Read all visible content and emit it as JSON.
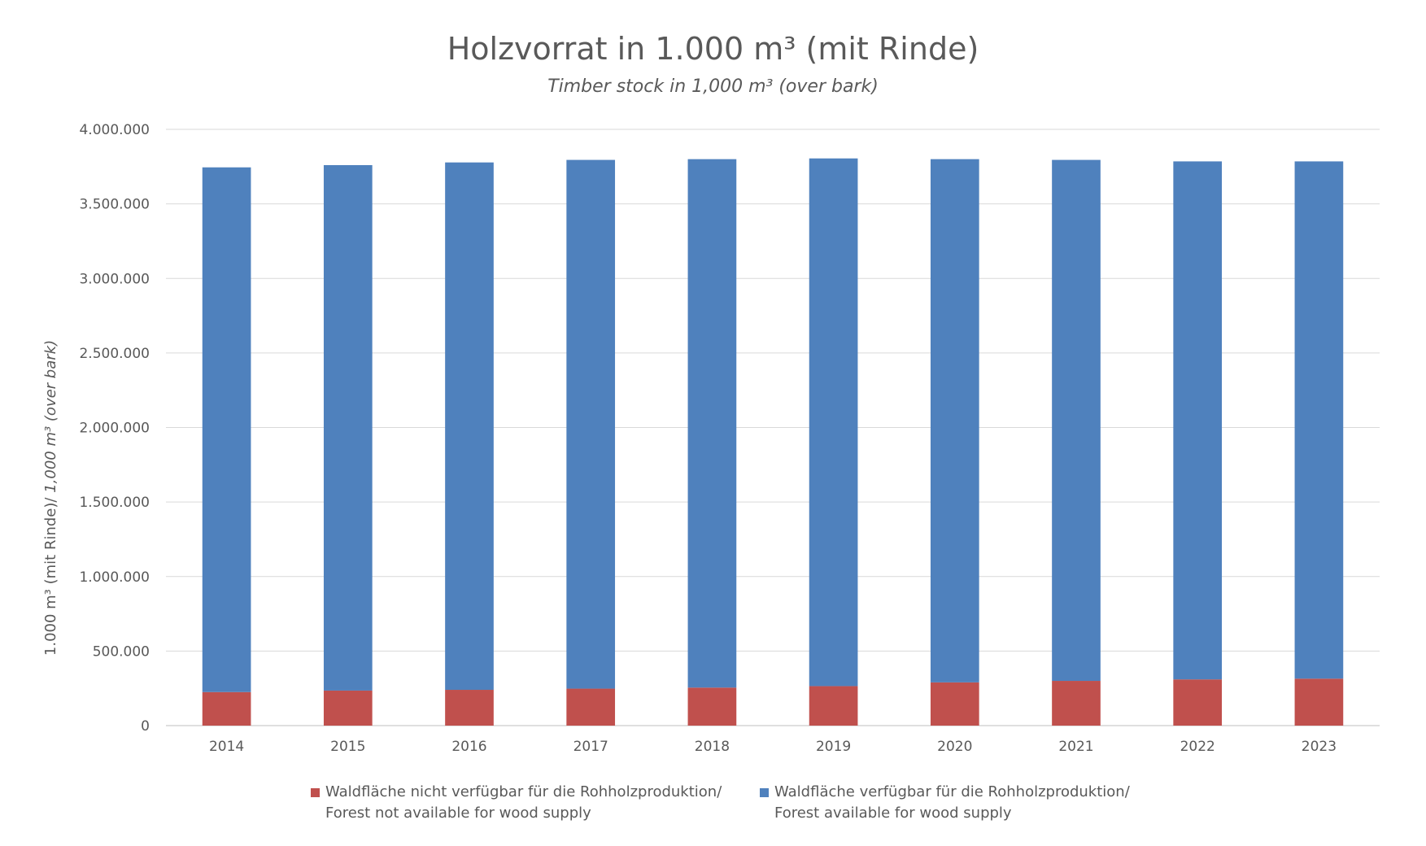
{
  "chart_data": {
    "type": "bar",
    "stacked": true,
    "title": "Holzvorrat in 1.000 m³ (mit Rinde)",
    "subtitle": "Timber stock in 1,000 m³ (over bark)",
    "ylabel": {
      "normal": "1.000 m³ (mit Rinde)/ ",
      "italic": "1,000 m³ (over bark)"
    },
    "xlabel": "",
    "ylim": [
      0,
      4000000
    ],
    "yticks": [
      0,
      500000,
      1000000,
      1500000,
      2000000,
      2500000,
      3000000,
      3500000,
      4000000
    ],
    "ytick_labels": [
      "0",
      "500.000",
      "1.000.000",
      "1.500.000",
      "2.000.000",
      "2.500.000",
      "3.000.000",
      "3.500.000",
      "4.000.000"
    ],
    "grid": true,
    "legend_position": "bottom",
    "categories": [
      "2014",
      "2015",
      "2016",
      "2017",
      "2018",
      "2019",
      "2020",
      "2021",
      "2022",
      "2023"
    ],
    "series": [
      {
        "name": "Waldfläche nicht verfügbar für die Rohholzproduktion/",
        "name_en": "Forest not available for wood supply",
        "color": "#c0504d",
        "values": [
          225000,
          235000,
          240000,
          248000,
          255000,
          265000,
          290000,
          300000,
          310000,
          315000
        ]
      },
      {
        "name": "Waldfläche verfügbar für die Rohholzproduktion/",
        "name_en": "Forest available for wood supply",
        "color": "#4f81bd",
        "values": [
          3520000,
          3525000,
          3538000,
          3547000,
          3545000,
          3540000,
          3510000,
          3495000,
          3475000,
          3470000
        ]
      }
    ]
  }
}
